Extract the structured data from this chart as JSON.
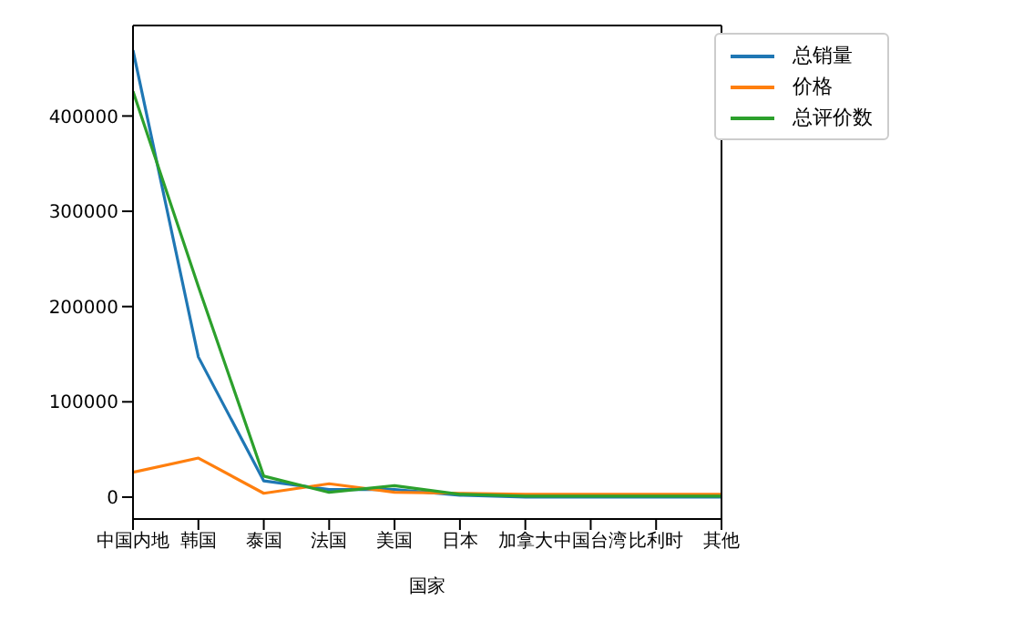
{
  "chart_data": {
    "type": "line",
    "xlabel": "国家",
    "categories": [
      "中国内地",
      "韩国",
      "泰国",
      "法国",
      "美国",
      "日本",
      "加拿大",
      "中国台湾",
      "比利时",
      "其他"
    ],
    "series": [
      {
        "name": "总销量",
        "color": "#1f77b4",
        "values": [
          469000,
          147000,
          17000,
          8000,
          8000,
          2000,
          0,
          0,
          0,
          0
        ]
      },
      {
        "name": "价格",
        "color": "#ff7f0e",
        "values": [
          26000,
          41000,
          4000,
          14000,
          5000,
          4000,
          3000,
          3000,
          3000,
          3000
        ]
      },
      {
        "name": "总评价数",
        "color": "#2ca02c",
        "values": [
          426000,
          221000,
          22000,
          5000,
          12000,
          3000,
          1000,
          1000,
          1000,
          1000
        ]
      }
    ],
    "ylim": [
      -23000,
      495000
    ],
    "yticks": [
      0,
      100000,
      200000,
      300000,
      400000
    ],
    "grid": false,
    "legend": "top right",
    "marker": "none",
    "line_style": "solid"
  }
}
